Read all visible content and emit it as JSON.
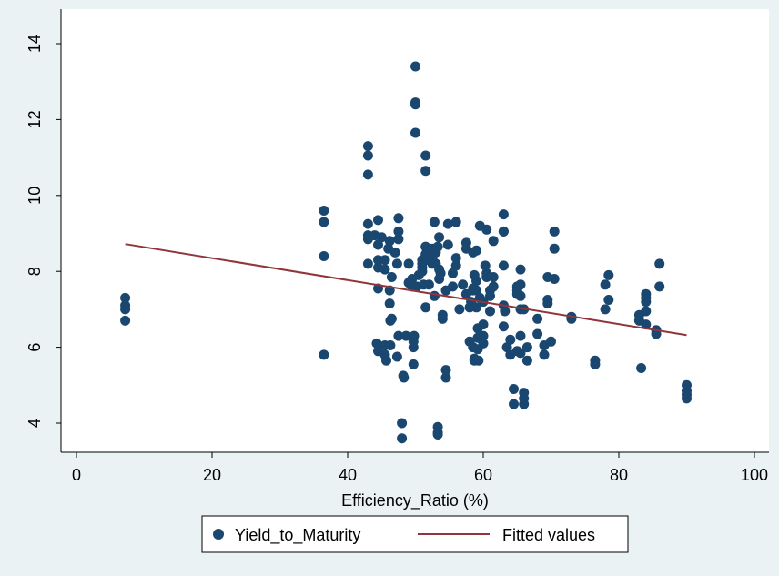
{
  "chart_data": {
    "type": "scatter",
    "xlabel": "Efficiency_Ratio (%)",
    "ylabel": "",
    "xlim": [
      0,
      100
    ],
    "ylim": [
      3.5,
      14.5
    ],
    "x_ticks": [
      "0",
      "20",
      "40",
      "60",
      "80",
      "100"
    ],
    "y_ticks": [
      "4",
      "6",
      "8",
      "10",
      "12",
      "14"
    ],
    "grid": false,
    "legend_position": "bottom",
    "series": [
      {
        "name": "Yield_to_Maturity",
        "kind": "scatter",
        "color": "#1a476f",
        "points": [
          [
            7.2,
            7.3
          ],
          [
            7.2,
            7.1
          ],
          [
            7.2,
            7.0
          ],
          [
            7.2,
            6.7
          ],
          [
            36.5,
            9.6
          ],
          [
            36.5,
            9.3
          ],
          [
            36.5,
            8.4
          ],
          [
            36.5,
            5.8
          ],
          [
            43,
            11.3
          ],
          [
            43,
            11.05
          ],
          [
            43,
            10.55
          ],
          [
            43,
            9.25
          ],
          [
            43,
            8.95
          ],
          [
            43,
            8.85
          ],
          [
            43,
            8.2
          ],
          [
            44,
            8.95
          ],
          [
            44.5,
            9.35
          ],
          [
            44.5,
            8.7
          ],
          [
            44.5,
            8.3
          ],
          [
            44.5,
            8.1
          ],
          [
            44.5,
            7.55
          ],
          [
            44.3,
            6.1
          ],
          [
            44.5,
            5.9
          ],
          [
            45,
            8.9
          ],
          [
            45.5,
            8.3
          ],
          [
            45.5,
            8.05
          ],
          [
            45.5,
            6.05
          ],
          [
            45.5,
            5.8
          ],
          [
            45.7,
            5.65
          ],
          [
            46,
            8.6
          ],
          [
            46.2,
            8.8
          ],
          [
            46.2,
            7.5
          ],
          [
            46.2,
            7.15
          ],
          [
            46.3,
            6.7
          ],
          [
            46.5,
            6.75
          ],
          [
            46.3,
            6.05
          ],
          [
            46.5,
            7.85
          ],
          [
            47,
            8.5
          ],
          [
            47.3,
            8.2
          ],
          [
            47.3,
            5.75
          ],
          [
            47.5,
            9.4
          ],
          [
            47.5,
            9.05
          ],
          [
            47.5,
            8.85
          ],
          [
            47.5,
            6.3
          ],
          [
            48,
            4.0
          ],
          [
            48,
            3.6
          ],
          [
            48.2,
            5.25
          ],
          [
            48.3,
            5.2
          ],
          [
            48.6,
            6.3
          ],
          [
            49,
            8.2
          ],
          [
            49,
            7.7
          ],
          [
            49.5,
            7.6
          ],
          [
            49.5,
            7.8
          ],
          [
            49.8,
            6.3
          ],
          [
            49.7,
            6.15
          ],
          [
            49.7,
            6.0
          ],
          [
            49.7,
            5.55
          ],
          [
            50,
            13.4
          ],
          [
            50,
            12.45
          ],
          [
            50,
            12.4
          ],
          [
            50,
            11.65
          ],
          [
            50.2,
            7.6
          ],
          [
            50.5,
            7.9
          ],
          [
            51,
            8.3
          ],
          [
            51,
            8.2
          ],
          [
            51,
            8.1
          ],
          [
            51,
            8.0
          ],
          [
            51.2,
            7.65
          ],
          [
            51.5,
            8.65
          ],
          [
            51.5,
            11.05
          ],
          [
            51.5,
            10.65
          ],
          [
            51.5,
            8.45
          ],
          [
            51.5,
            7.05
          ],
          [
            52,
            8.3
          ],
          [
            52,
            7.65
          ],
          [
            52.5,
            8.6
          ],
          [
            52.5,
            8.35
          ],
          [
            52.5,
            8.2
          ],
          [
            52.8,
            9.3
          ],
          [
            52.8,
            7.35
          ],
          [
            53,
            8.5
          ],
          [
            53,
            8.2
          ],
          [
            53.3,
            8.65
          ],
          [
            53.5,
            8.9
          ],
          [
            53.5,
            8.05
          ],
          [
            53.7,
            7.95
          ],
          [
            53.5,
            7.8
          ],
          [
            53.3,
            3.9
          ],
          [
            53.3,
            3.75
          ],
          [
            53.3,
            3.7
          ],
          [
            54,
            6.85
          ],
          [
            54,
            6.75
          ],
          [
            54.5,
            7.5
          ],
          [
            54.5,
            5.4
          ],
          [
            54.5,
            5.2
          ],
          [
            54.8,
            9.25
          ],
          [
            54.8,
            8.7
          ],
          [
            55.5,
            7.95
          ],
          [
            55.5,
            7.6
          ],
          [
            56,
            9.3
          ],
          [
            56,
            8.35
          ],
          [
            56,
            8.15
          ],
          [
            56.5,
            7.0
          ],
          [
            57,
            7.65
          ],
          [
            57.5,
            8.75
          ],
          [
            57.5,
            8.6
          ],
          [
            57.5,
            7.4
          ],
          [
            58,
            7.05
          ],
          [
            58,
            6.15
          ],
          [
            58.2,
            7.2
          ],
          [
            58.5,
            8.5
          ],
          [
            58.5,
            7.55
          ],
          [
            58.5,
            7.5
          ],
          [
            58.5,
            6.0
          ],
          [
            58.7,
            7.9
          ],
          [
            58.7,
            5.7
          ],
          [
            58.7,
            5.65
          ],
          [
            59,
            8.55
          ],
          [
            59,
            7.75
          ],
          [
            59,
            7.5
          ],
          [
            59,
            7.05
          ],
          [
            59.2,
            6.5
          ],
          [
            59.2,
            6.25
          ],
          [
            59.2,
            5.95
          ],
          [
            59.5,
            7.3
          ],
          [
            59.3,
            5.65
          ],
          [
            59.5,
            9.2
          ],
          [
            60,
            7.2
          ],
          [
            60,
            6.6
          ],
          [
            60,
            6.3
          ],
          [
            60,
            6.1
          ],
          [
            60.3,
            8.15
          ],
          [
            60.5,
            9.1
          ],
          [
            60.5,
            7.95
          ],
          [
            60.5,
            7.85
          ],
          [
            61,
            7.5
          ],
          [
            61,
            7.35
          ],
          [
            61,
            6.95
          ],
          [
            61.5,
            8.8
          ],
          [
            61.5,
            7.85
          ],
          [
            61.5,
            7.6
          ],
          [
            63,
            9.5
          ],
          [
            63,
            9.05
          ],
          [
            63,
            9.05
          ],
          [
            63,
            8.15
          ],
          [
            63,
            7.1
          ],
          [
            63,
            6.55
          ],
          [
            63.2,
            6.95
          ],
          [
            63.5,
            6.0
          ],
          [
            64,
            6.2
          ],
          [
            64,
            5.8
          ],
          [
            64.5,
            4.9
          ],
          [
            64.5,
            4.5
          ],
          [
            65,
            7.6
          ],
          [
            65,
            7.5
          ],
          [
            65,
            7.4
          ],
          [
            65,
            5.9
          ],
          [
            65.5,
            7.35
          ],
          [
            65.5,
            7.0
          ],
          [
            65.5,
            6.3
          ],
          [
            65.5,
            5.85
          ],
          [
            65.5,
            8.05
          ],
          [
            65.5,
            7.65
          ],
          [
            66,
            7.0
          ],
          [
            66,
            4.8
          ],
          [
            66,
            4.65
          ],
          [
            66,
            4.5
          ],
          [
            66.5,
            6.0
          ],
          [
            66.5,
            5.65
          ],
          [
            68,
            6.75
          ],
          [
            68,
            6.35
          ],
          [
            69,
            6.05
          ],
          [
            69,
            5.8
          ],
          [
            69.5,
            7.25
          ],
          [
            69.5,
            7.15
          ],
          [
            69.5,
            7.85
          ],
          [
            70,
            6.15
          ],
          [
            70.5,
            9.05
          ],
          [
            70.5,
            8.6
          ],
          [
            70.5,
            7.8
          ],
          [
            73,
            6.8
          ],
          [
            73,
            6.75
          ],
          [
            76.5,
            5.65
          ],
          [
            76.5,
            5.55
          ],
          [
            78,
            7.65
          ],
          [
            78,
            7.0
          ],
          [
            78.5,
            7.9
          ],
          [
            78.5,
            7.25
          ],
          [
            83,
            6.85
          ],
          [
            83,
            6.7
          ],
          [
            83.3,
            5.45
          ],
          [
            84,
            7.4
          ],
          [
            84,
            7.3
          ],
          [
            84,
            7.2
          ],
          [
            84,
            6.95
          ],
          [
            84,
            6.6
          ],
          [
            85.5,
            6.45
          ],
          [
            85.5,
            6.35
          ],
          [
            86,
            8.2
          ],
          [
            86,
            7.6
          ],
          [
            90,
            5.0
          ],
          [
            90,
            4.85
          ],
          [
            90,
            4.75
          ],
          [
            90,
            4.65
          ]
        ]
      },
      {
        "name": "Fitted values",
        "kind": "line",
        "color": "#90353b",
        "points": [
          [
            7.2,
            8.72
          ],
          [
            90,
            6.32
          ]
        ]
      }
    ]
  }
}
